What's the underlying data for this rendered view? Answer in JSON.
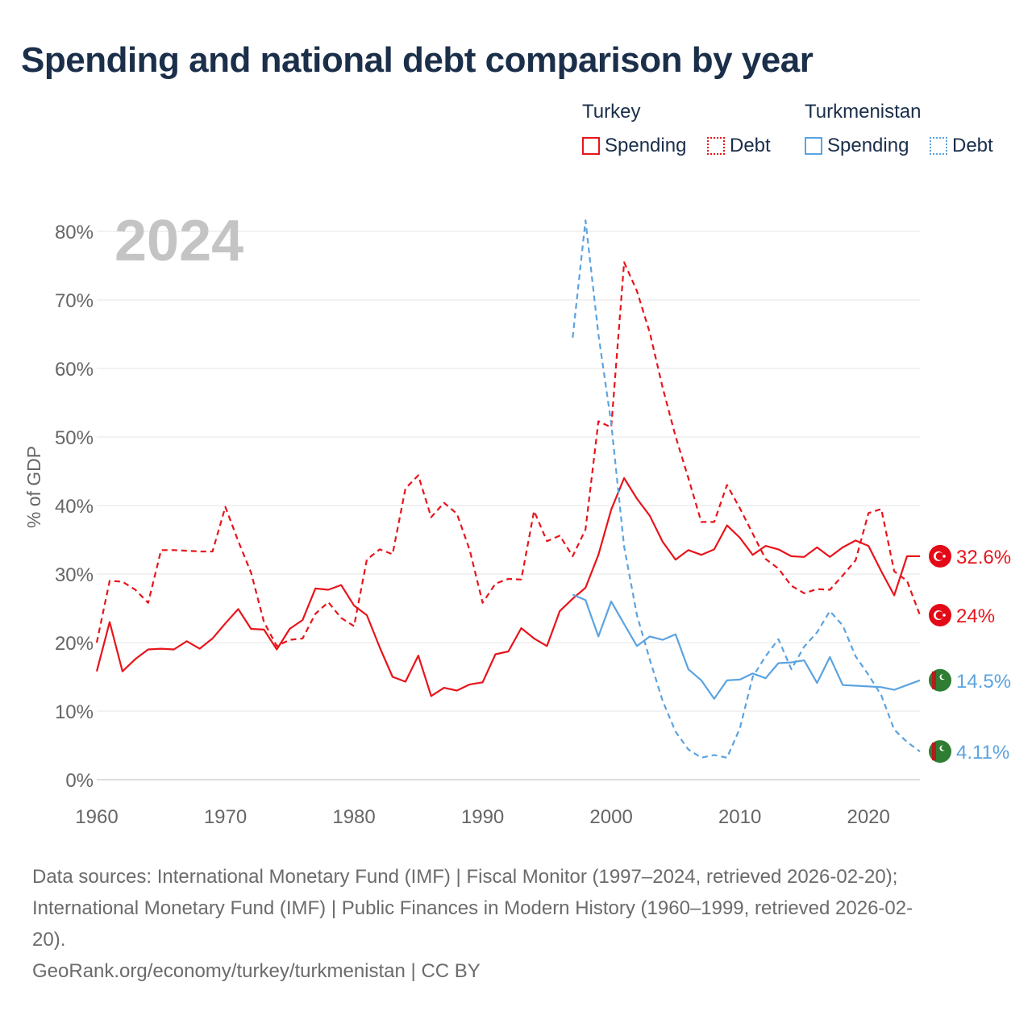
{
  "title": "Spending and national debt comparison by year",
  "legend": {
    "groups": [
      {
        "name": "Turkey",
        "items": [
          {
            "label": "Spending",
            "style": "solid",
            "color": "#e8141b"
          },
          {
            "label": "Debt",
            "style": "dotted",
            "color": "#e8141b"
          }
        ]
      },
      {
        "name": "Turkmenistan",
        "items": [
          {
            "label": "Spending",
            "style": "solid",
            "color": "#5ba3e0"
          },
          {
            "label": "Debt",
            "style": "dotted",
            "color": "#5ba3e0"
          }
        ]
      }
    ]
  },
  "year_label": "2024",
  "sources": {
    "line1": "Data sources: International Monetary Fund (IMF) | Fiscal Monitor (1997–2024, retrieved 2026-02-20);",
    "line2": "International Monetary Fund (IMF) | Public Finances in Modern History (1960–1999, retrieved 2026-02-",
    "line3": "20).",
    "attribution": "GeoRank.org/economy/turkey/turkmenistan | CC BY"
  },
  "chart_data": {
    "type": "line",
    "title": "Spending and national debt comparison by year",
    "ylabel": "% of GDP",
    "xlabel": "",
    "xlim": [
      1960,
      2024
    ],
    "ylim": [
      0,
      80
    ],
    "x_ticks": [
      1960,
      1970,
      1980,
      1990,
      2000,
      2010,
      2020
    ],
    "y_ticks": [
      0,
      10,
      20,
      30,
      40,
      50,
      60,
      70,
      80
    ],
    "y_tick_labels": [
      "0%",
      "10%",
      "20%",
      "30%",
      "40%",
      "50%",
      "60%",
      "70%",
      "80%"
    ],
    "grid": true,
    "series": [
      {
        "name": "Turkey Spending",
        "color": "#e8141b",
        "dash": "solid",
        "end_label": "32.6%",
        "x": [
          1960,
          1961,
          1962,
          1963,
          1964,
          1965,
          1966,
          1967,
          1968,
          1969,
          1970,
          1971,
          1972,
          1973,
          1974,
          1975,
          1976,
          1977,
          1978,
          1979,
          1980,
          1981,
          1982,
          1983,
          1984,
          1985,
          1986,
          1987,
          1988,
          1989,
          1990,
          1991,
          1992,
          1993,
          1994,
          1995,
          1996,
          1997,
          1998,
          1999,
          2000,
          2001,
          2002,
          2003,
          2004,
          2005,
          2006,
          2007,
          2008,
          2009,
          2010,
          2011,
          2012,
          2013,
          2014,
          2015,
          2016,
          2017,
          2018,
          2019,
          2020,
          2021,
          2022,
          2023,
          2024
        ],
        "values": [
          15.8,
          23.0,
          15.8,
          17.6,
          19.0,
          19.1,
          19.0,
          20.2,
          19.1,
          20.6,
          22.8,
          24.9,
          22.0,
          21.9,
          19.0,
          22.0,
          23.3,
          27.9,
          27.7,
          28.4,
          25.4,
          24.0,
          19.3,
          15.0,
          14.3,
          18.1,
          12.2,
          13.4,
          13.0,
          13.9,
          14.2,
          18.3,
          18.7,
          22.1,
          20.6,
          19.5,
          24.6,
          26.4,
          28.0,
          32.8,
          39.4,
          44.0,
          41.0,
          38.5,
          34.7,
          32.1,
          33.5,
          32.8,
          33.6,
          37.1,
          35.3,
          32.8,
          34.1,
          33.6,
          32.6,
          32.5,
          33.9,
          32.5,
          33.9,
          34.9,
          34.1,
          30.4,
          26.9,
          32.6,
          32.6
        ]
      },
      {
        "name": "Turkey Debt",
        "color": "#e8141b",
        "dash": "dashed",
        "end_label": "24%",
        "x": [
          1960,
          1961,
          1962,
          1963,
          1964,
          1965,
          1966,
          1967,
          1968,
          1969,
          1970,
          1971,
          1972,
          1973,
          1974,
          1975,
          1976,
          1977,
          1978,
          1979,
          1980,
          1981,
          1982,
          1983,
          1984,
          1985,
          1986,
          1987,
          1988,
          1989,
          1990,
          1991,
          1992,
          1993,
          1994,
          1995,
          1996,
          1997,
          1998,
          1999,
          2000,
          2001,
          2002,
          2003,
          2004,
          2005,
          2006,
          2007,
          2008,
          2009,
          2010,
          2011,
          2012,
          2013,
          2014,
          2015,
          2016,
          2017,
          2018,
          2019,
          2020,
          2021,
          2022,
          2023,
          2024
        ],
        "values": [
          20.0,
          29.0,
          28.9,
          27.7,
          25.8,
          33.5,
          33.5,
          33.4,
          33.3,
          33.3,
          39.8,
          34.8,
          30.2,
          23.0,
          19.5,
          20.4,
          20.6,
          24.2,
          25.9,
          23.6,
          22.4,
          32.1,
          33.6,
          32.9,
          42.5,
          44.4,
          38.3,
          40.4,
          38.8,
          33.5,
          25.8,
          28.6,
          29.3,
          29.2,
          39.2,
          34.8,
          35.6,
          32.6,
          36.5,
          52.3,
          51.4,
          75.5,
          71.3,
          65.2,
          57.2,
          50.1,
          44.0,
          37.6,
          37.6,
          43.0,
          39.6,
          35.9,
          32.2,
          30.8,
          28.3,
          27.2,
          27.8,
          27.7,
          29.8,
          32.0,
          38.9,
          39.5,
          30.4,
          29.0,
          24.0
        ]
      },
      {
        "name": "Turkmenistan Spending",
        "color": "#5ba3e0",
        "dash": "solid",
        "end_label": "14.5%",
        "x": [
          1997,
          1998,
          1999,
          2000,
          2001,
          2002,
          2003,
          2004,
          2005,
          2006,
          2007,
          2008,
          2009,
          2010,
          2011,
          2012,
          2013,
          2014,
          2015,
          2016,
          2017,
          2018,
          2019,
          2020,
          2021,
          2022,
          2023,
          2024
        ],
        "values": [
          27.0,
          26.2,
          20.9,
          26.0,
          22.7,
          19.5,
          20.9,
          20.4,
          21.2,
          16.1,
          14.5,
          11.8,
          14.5,
          14.6,
          15.5,
          14.8,
          17.0,
          17.1,
          17.4,
          14.1,
          17.9,
          13.8,
          13.7,
          13.6,
          13.5,
          13.1,
          13.8,
          14.5
        ]
      },
      {
        "name": "Turkmenistan Debt",
        "color": "#5ba3e0",
        "dash": "dashed",
        "end_label": "4.11%",
        "x": [
          1997,
          1998,
          1999,
          2000,
          2001,
          2002,
          2003,
          2004,
          2005,
          2006,
          2007,
          2008,
          2009,
          2010,
          2011,
          2012,
          2013,
          2014,
          2015,
          2016,
          2017,
          2018,
          2019,
          2020,
          2021,
          2022,
          2023,
          2024
        ],
        "values": [
          64.5,
          81.6,
          65.0,
          52.0,
          34.0,
          24.0,
          17.5,
          11.5,
          7.0,
          4.4,
          3.2,
          3.6,
          3.2,
          7.5,
          15.0,
          18.0,
          20.5,
          16.1,
          19.4,
          21.5,
          24.6,
          22.5,
          18.0,
          15.3,
          12.3,
          7.3,
          5.5,
          4.11
        ]
      }
    ]
  }
}
